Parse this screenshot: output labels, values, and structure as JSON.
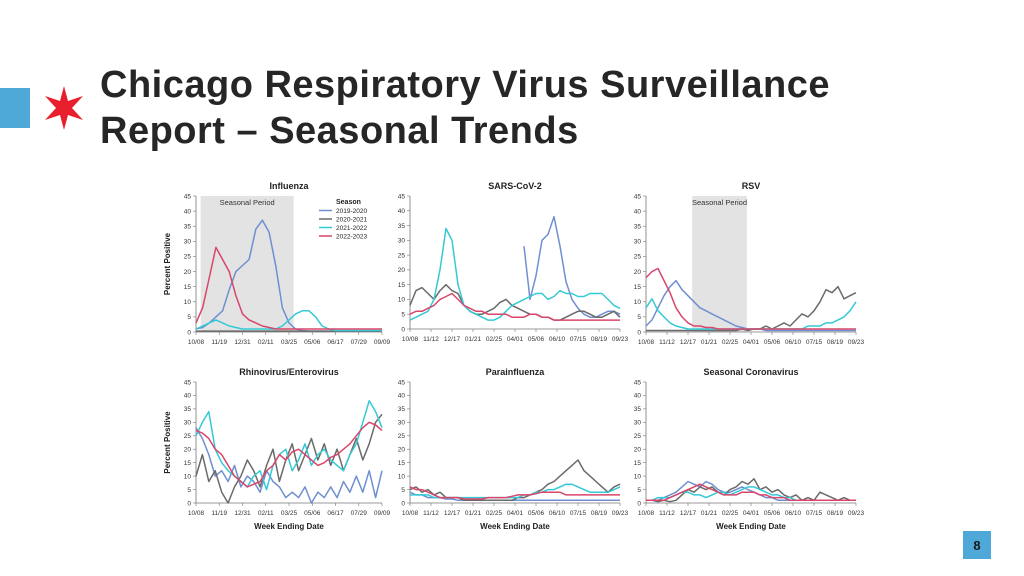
{
  "slide": {
    "title_line1": "Chicago Respiratory Virus Surveillance",
    "title_line2": "Report – Seasonal Trends",
    "page_number": "8"
  },
  "colors": {
    "accent": "#4ea9d8",
    "star": "#e8202e",
    "seasonal_shade": "#e3e3e3"
  },
  "chart_data": [
    {
      "type": "line",
      "title": "Influenza",
      "ylabel": "Percent Positive",
      "xlabel": "",
      "ylim": [
        0,
        45
      ],
      "yticks": [
        0,
        5,
        10,
        15,
        20,
        25,
        30,
        35,
        40,
        45
      ],
      "x_ticks": [
        "10/08",
        "11/19",
        "12/31",
        "02/11",
        "03/25",
        "05/06",
        "06/17",
        "07/29",
        "09/09"
      ],
      "shaded_region": {
        "label": "Seasonal Period",
        "from": 0.2,
        "to": 4.2
      },
      "legend": {
        "title": "Season",
        "position": "top-right"
      },
      "series": [
        {
          "name": "2019-2020",
          "color": "#6f8fd0",
          "values": [
            1,
            1.5,
            3,
            5,
            7,
            14,
            20,
            22,
            24,
            34,
            37,
            33,
            22,
            8,
            3,
            1,
            0.5,
            0.3,
            0.3,
            0.3,
            0.3,
            0.3,
            0.3,
            0.3,
            0.3,
            0.3,
            0.3,
            0.3,
            0.3
          ]
        },
        {
          "name": "2020-2021",
          "color": "#6a6a6a",
          "values": [
            0.3,
            0.3,
            0.3,
            0.3,
            0.3,
            0.3,
            0.3,
            0.3,
            0.3,
            0.3,
            0.3,
            0.3,
            0.3,
            0.3,
            0.3,
            0.3,
            0.3,
            0.3,
            0.3,
            0.3,
            0.3,
            0.3,
            0.3,
            0.3,
            0.3,
            0.3,
            0.3,
            0.3,
            0.3
          ]
        },
        {
          "name": "2021-2022",
          "color": "#34c9d6",
          "values": [
            1,
            2,
            3,
            4,
            3,
            2,
            1.5,
            1,
            1,
            1,
            1,
            1,
            1,
            2,
            4,
            6,
            7,
            7,
            5,
            2,
            1,
            0.5,
            0.5,
            0.5,
            0.5,
            0.5,
            0.5,
            0.5,
            0.5
          ]
        },
        {
          "name": "2022-2023",
          "color": "#d9466a",
          "values": [
            3,
            8,
            18,
            28,
            24,
            20,
            12,
            6,
            4,
            3,
            2,
            1.5,
            1,
            1,
            1,
            1,
            1,
            1,
            1,
            1,
            1,
            1,
            1,
            1,
            1,
            1,
            1,
            1,
            1
          ]
        }
      ]
    },
    {
      "type": "line",
      "title": "SARS-CoV-2",
      "ylabel": "",
      "xlabel": "",
      "ylim": [
        0,
        45
      ],
      "yticks": [
        0,
        5,
        10,
        15,
        20,
        25,
        30,
        35,
        40,
        45
      ],
      "x_ticks": [
        "10/08",
        "11/12",
        "12/17",
        "01/21",
        "02/25",
        "04/01",
        "05/06",
        "06/10",
        "07/15",
        "08/19",
        "09/23"
      ],
      "series": [
        {
          "color": "#6f8fd0",
          "values": [
            null,
            null,
            null,
            null,
            null,
            null,
            null,
            null,
            null,
            null,
            null,
            null,
            null,
            null,
            null,
            null,
            null,
            null,
            null,
            28,
            10,
            18,
            30,
            32,
            38,
            28,
            16,
            10,
            7,
            5,
            4,
            4,
            5,
            6,
            6,
            5
          ]
        },
        {
          "color": "#6a6a6a",
          "values": [
            8,
            13,
            14,
            12,
            10,
            13,
            15,
            13,
            12,
            8,
            6,
            5,
            5,
            6,
            7,
            9,
            10,
            8,
            7,
            6,
            5,
            5,
            4,
            4,
            3,
            3,
            4,
            5,
            6,
            6,
            5,
            4,
            4,
            5,
            6,
            4
          ]
        },
        {
          "color": "#34c9d6",
          "values": [
            3,
            4,
            5,
            6,
            10,
            20,
            34,
            30,
            15,
            8,
            6,
            5,
            4,
            3,
            3,
            4,
            6,
            8,
            9,
            10,
            11,
            12,
            12,
            10,
            11,
            13,
            12,
            12,
            11,
            11,
            12,
            12,
            12,
            10,
            8,
            7
          ]
        },
        {
          "color": "#d9466a",
          "values": [
            5,
            6,
            6,
            7,
            8,
            10,
            11,
            12,
            10,
            8,
            7,
            6,
            6,
            5,
            5,
            5,
            5,
            4,
            4,
            4,
            5,
            5,
            4,
            4,
            3,
            3,
            3,
            3,
            3,
            3,
            3,
            3,
            3,
            3,
            3,
            3
          ]
        }
      ]
    },
    {
      "type": "line",
      "title": "RSV",
      "ylabel": "",
      "xlabel": "",
      "ylim": [
        0,
        45
      ],
      "yticks": [
        0,
        5,
        10,
        15,
        20,
        25,
        30,
        35,
        40,
        45
      ],
      "x_ticks": [
        "10/08",
        "11/12",
        "12/17",
        "01/21",
        "02/25",
        "04/01",
        "05/06",
        "06/10",
        "07/15",
        "08/19",
        "09/23"
      ],
      "shaded_region": {
        "label": "Seasonal Period",
        "from": 2.2,
        "to": 4.8
      },
      "series": [
        {
          "color": "#6f8fd0",
          "values": [
            2,
            4,
            8,
            12,
            15,
            17,
            14,
            12,
            10,
            8,
            7,
            6,
            5,
            4,
            3,
            2,
            1.5,
            1,
            1,
            1,
            0.5,
            0.5,
            0.5,
            0.5,
            0.5,
            0.5,
            0.5,
            0.5,
            0.5,
            0.5,
            0.5,
            0.5,
            0.5,
            0.5,
            0.5,
            0.5
          ]
        },
        {
          "color": "#6a6a6a",
          "values": [
            0.5,
            0.5,
            0.5,
            0.5,
            0.5,
            0.5,
            0.5,
            0.5,
            0.5,
            0.5,
            0.5,
            0.5,
            0.5,
            0.5,
            0.5,
            0.5,
            1,
            0.5,
            1,
            1,
            2,
            1,
            2,
            3,
            2,
            4,
            6,
            5,
            7,
            10,
            14,
            13,
            15,
            11,
            12,
            13
          ]
        },
        {
          "color": "#34c9d6",
          "values": [
            8,
            11,
            7,
            5,
            3,
            2,
            1.5,
            1,
            1,
            1,
            1,
            1,
            1,
            1,
            1,
            1,
            1,
            1,
            1,
            1,
            1,
            1,
            1,
            1,
            1,
            1,
            1,
            2,
            2,
            2,
            3,
            3,
            4,
            5,
            7,
            10
          ]
        },
        {
          "color": "#d9466a",
          "values": [
            18,
            20,
            21,
            17,
            13,
            8,
            5,
            3,
            2,
            2,
            1.5,
            1.5,
            1,
            1,
            1,
            1,
            1,
            1,
            1,
            1,
            1,
            1,
            1,
            1,
            1,
            1,
            1,
            1,
            1,
            1,
            1,
            1,
            1,
            1,
            1,
            1
          ]
        }
      ]
    },
    {
      "type": "line",
      "title": "Rhinovirus/Enterovirus",
      "ylabel": "Percent Positive",
      "xlabel": "Week Ending Date",
      "ylim": [
        0,
        45
      ],
      "yticks": [
        0,
        5,
        10,
        15,
        20,
        25,
        30,
        35,
        40,
        45
      ],
      "x_ticks": [
        "10/08",
        "11/19",
        "12/31",
        "02/11",
        "03/25",
        "05/06",
        "06/17",
        "07/29",
        "09/09"
      ],
      "series": [
        {
          "color": "#6f8fd0",
          "values": [
            28,
            24,
            18,
            10,
            12,
            8,
            14,
            6,
            10,
            8,
            4,
            12,
            8,
            6,
            2,
            4,
            2,
            6,
            0,
            4,
            2,
            6,
            2,
            8,
            4,
            10,
            4,
            12,
            2,
            12
          ]
        },
        {
          "color": "#6a6a6a",
          "values": [
            10,
            18,
            8,
            12,
            4,
            0,
            6,
            10,
            16,
            12,
            6,
            14,
            20,
            8,
            16,
            22,
            12,
            18,
            24,
            16,
            22,
            14,
            20,
            12,
            18,
            24,
            16,
            22,
            30,
            33
          ]
        },
        {
          "color": "#34c9d6",
          "values": [
            25,
            30,
            34,
            20,
            15,
            12,
            10,
            8,
            6,
            10,
            12,
            5,
            14,
            18,
            20,
            12,
            16,
            22,
            14,
            18,
            20,
            16,
            14,
            12,
            18,
            22,
            30,
            38,
            34,
            28
          ]
        },
        {
          "color": "#d9466a",
          "values": [
            27,
            26,
            24,
            20,
            18,
            14,
            10,
            8,
            6,
            7,
            8,
            12,
            14,
            18,
            16,
            19,
            20,
            18,
            16,
            14,
            15,
            17,
            18,
            20,
            22,
            25,
            28,
            30,
            29,
            27
          ]
        }
      ]
    },
    {
      "type": "line",
      "title": "Parainfluenza",
      "ylabel": "",
      "xlabel": "Week Ending Date",
      "ylim": [
        0,
        45
      ],
      "yticks": [
        0,
        5,
        10,
        15,
        20,
        25,
        30,
        35,
        40,
        45
      ],
      "x_ticks": [
        "10/08",
        "11/12",
        "12/17",
        "01/21",
        "02/25",
        "04/01",
        "05/06",
        "06/10",
        "07/15",
        "08/19",
        "09/23"
      ],
      "series": [
        {
          "color": "#6f8fd0",
          "values": [
            4,
            3,
            3,
            2,
            2,
            2,
            1.5,
            1.5,
            1,
            1,
            1,
            1,
            1,
            1,
            1,
            1,
            1,
            1,
            1,
            1,
            1,
            1,
            1,
            1,
            1,
            1,
            1,
            1,
            1,
            1,
            1,
            1,
            1,
            1,
            1,
            1
          ]
        },
        {
          "color": "#6a6a6a",
          "values": [
            5,
            6,
            4,
            5,
            3,
            4,
            2,
            2,
            2,
            1,
            1,
            1,
            1,
            1,
            1,
            1,
            1,
            1,
            2,
            2,
            3,
            4,
            5,
            7,
            8,
            10,
            12,
            14,
            16,
            12,
            10,
            8,
            6,
            4,
            6,
            7
          ]
        },
        {
          "color": "#34c9d6",
          "values": [
            3,
            3,
            3,
            3,
            2,
            2,
            2,
            2,
            2,
            2,
            2,
            2,
            2,
            2,
            2,
            2,
            2,
            2,
            2,
            3,
            3,
            4,
            4,
            5,
            5,
            6,
            7,
            7,
            6,
            5,
            4,
            4,
            4,
            4,
            5,
            6
          ]
        },
        {
          "color": "#d9466a",
          "values": [
            6,
            5,
            5,
            4,
            3,
            2,
            2,
            2,
            2,
            1.5,
            1.5,
            1.5,
            1.5,
            2,
            2,
            2,
            2,
            2.5,
            3,
            3,
            3,
            3.5,
            4,
            4,
            4,
            4,
            3,
            3,
            3,
            3,
            3,
            3,
            3,
            3,
            3,
            3
          ]
        }
      ]
    },
    {
      "type": "line",
      "title": "Seasonal Coronavirus",
      "ylabel": "",
      "xlabel": "Week Ending Date",
      "ylim": [
        0,
        45
      ],
      "yticks": [
        0,
        5,
        10,
        15,
        20,
        25,
        30,
        35,
        40,
        45
      ],
      "x_ticks": [
        "10/08",
        "11/12",
        "12/17",
        "01/21",
        "02/25",
        "04/01",
        "05/06",
        "06/10",
        "07/15",
        "08/19",
        "09/23"
      ],
      "series": [
        {
          "color": "#6f8fd0",
          "values": [
            1,
            1,
            1,
            2,
            3,
            4,
            6,
            8,
            7,
            6,
            8,
            7,
            5,
            4,
            4,
            5,
            6,
            5,
            4,
            3,
            2,
            2,
            1,
            1,
            1,
            1,
            1,
            1,
            1,
            1,
            1,
            1,
            1,
            1,
            1,
            1
          ]
        },
        {
          "color": "#6a6a6a",
          "values": [
            1,
            1,
            0.5,
            1,
            0.5,
            1,
            3,
            5,
            4,
            6,
            5,
            6,
            4,
            3,
            5,
            6,
            8,
            7,
            9,
            5,
            6,
            4,
            5,
            3,
            2,
            3,
            1,
            2,
            1,
            4,
            3,
            2,
            1,
            2,
            1,
            1
          ]
        },
        {
          "color": "#34c9d6",
          "values": [
            1,
            1,
            2,
            2,
            2,
            3,
            4,
            4,
            3,
            3,
            2,
            3,
            4,
            4,
            3,
            4,
            5,
            6,
            6,
            5,
            4,
            3,
            3,
            2,
            2,
            1,
            1,
            1,
            1,
            1,
            1,
            1,
            1,
            1,
            1,
            1
          ]
        },
        {
          "color": "#d9466a",
          "values": [
            1,
            1,
            1,
            1,
            2,
            3,
            4,
            5,
            6,
            7,
            6,
            5,
            4,
            3,
            3,
            3,
            4,
            4,
            4,
            3,
            3,
            2,
            2,
            2,
            1,
            1,
            1,
            1,
            1,
            1,
            1,
            1,
            1,
            1,
            1,
            1
          ]
        }
      ]
    }
  ]
}
